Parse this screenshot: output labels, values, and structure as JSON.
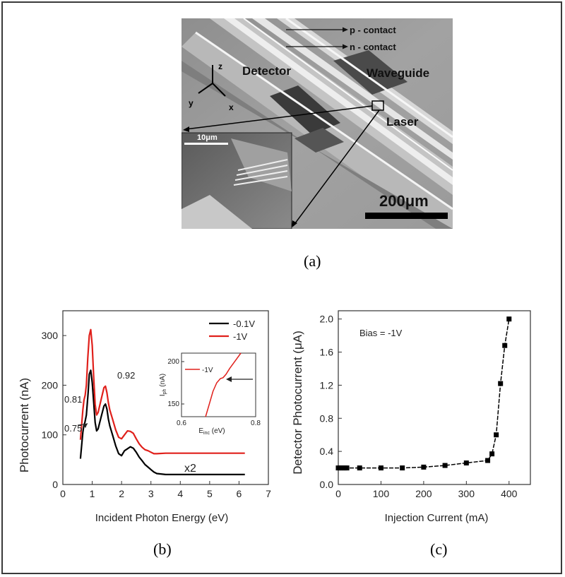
{
  "panel_labels": {
    "a": "(a)",
    "b": "(b)",
    "c": "(c)"
  },
  "sem": {
    "labels": {
      "p_contact": "p - contact",
      "n_contact": "n - contact",
      "detector": "Detector",
      "waveguide": "Waveguide",
      "laser": "Laser",
      "axis_z": "z",
      "axis_y": "y",
      "axis_x": "x",
      "inset_scale": "10μm",
      "scale_bar": "200μm"
    }
  },
  "chart_data": [
    {
      "type": "line",
      "panel": "b",
      "xlabel": "Incident Photon Energy (eV)",
      "ylabel": "Photocurrent (nA)",
      "xlim": [
        0,
        7
      ],
      "ylim": [
        0,
        350
      ],
      "xticks": [
        0,
        1,
        2,
        3,
        4,
        5,
        6,
        7
      ],
      "yticks": [
        0,
        100,
        200,
        300
      ],
      "legend_position": "top-right",
      "series": [
        {
          "name": "-0.1V",
          "color": "#000000",
          "x": [
            0.6,
            0.68,
            0.72,
            0.75,
            0.8,
            0.86,
            0.9,
            0.95,
            1.0,
            1.05,
            1.1,
            1.15,
            1.2,
            1.3,
            1.4,
            1.45,
            1.5,
            1.55,
            1.6,
            1.7,
            1.8,
            1.9,
            2.0,
            2.1,
            2.2,
            2.3,
            2.4,
            2.5,
            2.6,
            2.7,
            2.8,
            2.9,
            3.0,
            3.1,
            3.2,
            3.5,
            4.0,
            4.5,
            5.0,
            5.5,
            6.2
          ],
          "y": [
            52,
            105,
            120,
            125,
            140,
            185,
            222,
            230,
            205,
            165,
            125,
            108,
            112,
            135,
            158,
            162,
            152,
            132,
            118,
            98,
            78,
            62,
            58,
            68,
            72,
            76,
            73,
            65,
            55,
            48,
            40,
            35,
            30,
            25,
            22,
            20,
            20,
            20,
            20,
            20,
            20
          ]
        },
        {
          "name": "-1V",
          "color": "#e0201b",
          "x": [
            0.6,
            0.68,
            0.72,
            0.76,
            0.8,
            0.85,
            0.9,
            0.95,
            1.0,
            1.05,
            1.1,
            1.15,
            1.2,
            1.3,
            1.4,
            1.45,
            1.5,
            1.55,
            1.6,
            1.7,
            1.8,
            1.9,
            2.0,
            2.1,
            2.2,
            2.3,
            2.4,
            2.5,
            2.6,
            2.7,
            2.8,
            2.9,
            3.0,
            3.1,
            3.2,
            3.5,
            4.0,
            4.5,
            5.0,
            5.5,
            6.2
          ],
          "y": [
            90,
            150,
            170,
            180,
            200,
            255,
            300,
            312,
            280,
            215,
            162,
            140,
            145,
            170,
            195,
            198,
            185,
            165,
            150,
            130,
            110,
            95,
            92,
            100,
            108,
            107,
            103,
            92,
            82,
            75,
            70,
            68,
            65,
            62,
            62,
            63,
            63,
            63,
            63,
            63,
            63
          ]
        }
      ],
      "annotations": [
        {
          "text": "0.81",
          "x": 0.81
        },
        {
          "text": "0.92",
          "x": 0.92
        },
        {
          "text": "0.75",
          "x": 0.75
        },
        {
          "text": "x2"
        }
      ],
      "inset": {
        "xlabel_main": "E",
        "xlabel_sub": "inc",
        "xlabel_unit": " (eV)",
        "ylabel_main": "I",
        "ylabel_sub": "ph",
        "ylabel_unit": " (nA)",
        "xlim": [
          0.6,
          0.8
        ],
        "ylim": [
          135,
          210
        ],
        "xticks": [
          "0.6",
          "0.8"
        ],
        "yticks": [
          "150",
          "200"
        ],
        "series": [
          {
            "name": "-1V",
            "color": "#e0201b",
            "x": [
              0.665,
              0.675,
              0.685,
              0.695,
              0.705,
              0.712,
              0.72,
              0.73,
              0.74,
              0.75,
              0.76
            ],
            "y": [
              135,
              150,
              165,
              175,
              180,
              181,
              185,
              192,
              198,
              204,
              210
            ]
          }
        ]
      }
    },
    {
      "type": "line",
      "panel": "c",
      "xlabel": "Injection Current (mA)",
      "ylabel": "Detector Photocurrent (μA)",
      "xlim": [
        0,
        450
      ],
      "ylim": [
        0,
        2.1
      ],
      "xticks": [
        0,
        100,
        200,
        300,
        400
      ],
      "yticks": [
        "0.0",
        "0.4",
        "0.8",
        "1.2",
        "1.6",
        "2.0"
      ],
      "annotation": "Bias = -1V",
      "series": [
        {
          "name": "",
          "color": "#000000",
          "x": [
            0,
            5,
            10,
            15,
            20,
            50,
            100,
            150,
            200,
            250,
            300,
            350,
            360,
            370,
            380,
            390,
            400
          ],
          "y": [
            0.2,
            0.2,
            0.2,
            0.2,
            0.2,
            0.2,
            0.2,
            0.2,
            0.21,
            0.23,
            0.26,
            0.29,
            0.37,
            0.6,
            1.22,
            1.68,
            2.0
          ]
        }
      ]
    }
  ]
}
